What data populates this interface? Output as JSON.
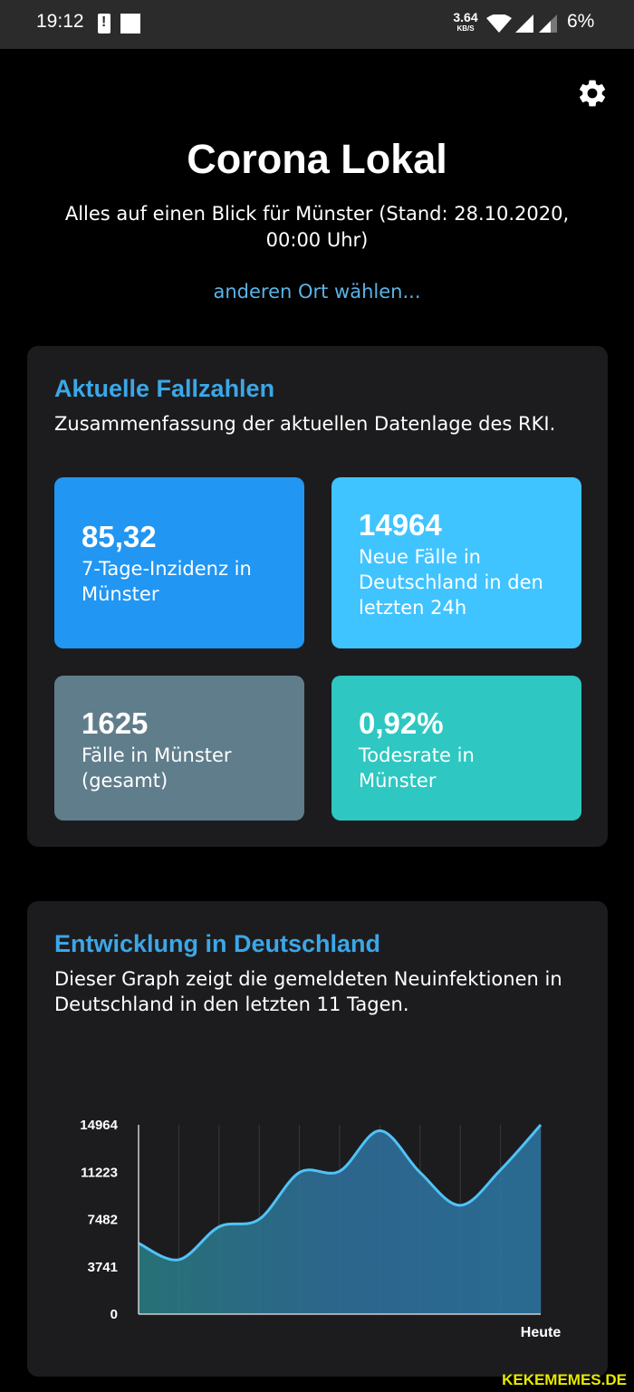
{
  "status_bar": {
    "time": "19:12",
    "speed_value": "3.64",
    "speed_unit": "KB/S",
    "battery": "6%"
  },
  "header": {
    "settings_icon": "gear-icon",
    "title": "Corona Lokal",
    "subtitle": "Alles auf einen Blick für Münster (Stand: 28.10.2020, 00:00 Uhr)",
    "change_location": "anderen Ort wählen..."
  },
  "current_cases": {
    "title": "Aktuelle Fallzahlen",
    "description": "Zusammenfassung der aktuellen Datenlage des RKI.",
    "tiles": [
      {
        "value": "85,32",
        "label": "7-Tage-Inzidenz in Münster",
        "color": "#2196f3"
      },
      {
        "value": "14964",
        "label": "Neue Fälle in Deutschland in den letzten 24h",
        "color": "#40c4ff"
      },
      {
        "value": "1625",
        "label": "Fälle in Münster (gesamt)",
        "color": "#607d8b"
      },
      {
        "value": "0,92%",
        "label": "Todesrate in Münster",
        "color": "#2ec7c1"
      }
    ]
  },
  "development": {
    "title": "Entwicklung in Deutschland",
    "description": "Dieser Graph zeigt die gemeldeten Neuinfektionen in Deutschland in den letzten 11 Tagen."
  },
  "chart_data": {
    "type": "area",
    "title": "",
    "xlabel": "",
    "ylabel": "",
    "ylim": [
      0,
      14964
    ],
    "yticks": [
      "0",
      "3741",
      "7482",
      "11223",
      "14964"
    ],
    "x_labels": [
      "",
      "",
      "",
      "",
      "",
      "",
      "",
      "",
      "",
      "",
      "Heute"
    ],
    "values": [
      5600,
      4300,
      6900,
      7500,
      11200,
      11300,
      14500,
      11200,
      8600,
      11400,
      14964
    ],
    "line_color": "#4fc3f7",
    "grid": true
  },
  "watermark": "KEKEMEMES.DE"
}
